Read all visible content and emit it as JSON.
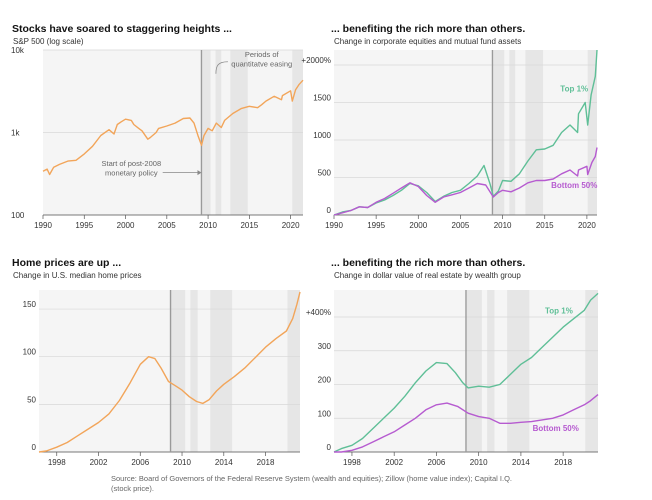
{
  "colors": {
    "orange": "#f2a55a",
    "green": "#5fbf97",
    "purple": "#b65bd0",
    "band": "#e6e6e6",
    "panel_bg": "#f5f5f5",
    "qe_line": "#9a9a9a"
  },
  "source": "Source: Board of Governors of the Federal Reserve System (wealth and equities); Zillow (home value index); Capital I.Q. (stock price).",
  "chart_data": [
    {
      "id": "sp500",
      "type": "line",
      "title": "Stocks have soared to staggering heights ...",
      "subtitle": "S&P 500 (log scale)",
      "log_scale": true,
      "xlim": [
        1990,
        2021.5
      ],
      "ylim": [
        100,
        10000
      ],
      "x_ticks": [
        1990,
        1995,
        2000,
        2005,
        2010,
        2015,
        2020
      ],
      "y_ticks": [
        100,
        1000,
        10000
      ],
      "y_tick_labels": [
        "100",
        "1k",
        "10k"
      ],
      "vline": 2009.2,
      "qe_bands": [
        [
          2009.3,
          2010.3
        ],
        [
          2010.9,
          2011.6
        ],
        [
          2012.7,
          2014.8
        ],
        [
          2020.2,
          2021.5
        ]
      ],
      "annotations": [
        {
          "text": "Periods of",
          "x": 2016.5,
          "y": 8200
        },
        {
          "text": "quantitatve easing",
          "x": 2016.5,
          "y": 6300
        },
        {
          "text": "Start of post-2008",
          "x": 2000.7,
          "y": 390
        },
        {
          "text": "monetary policy",
          "x": 2000.7,
          "y": 300
        }
      ],
      "series": [
        {
          "color_key": "orange",
          "points": [
            [
              1990,
              340
            ],
            [
              1990.5,
              360
            ],
            [
              1990.8,
              310
            ],
            [
              1991.3,
              380
            ],
            [
              1992,
              410
            ],
            [
              1993,
              450
            ],
            [
              1994,
              460
            ],
            [
              1995,
              550
            ],
            [
              1996,
              680
            ],
            [
              1997,
              920
            ],
            [
              1998,
              1080
            ],
            [
              1998.6,
              960
            ],
            [
              1999,
              1250
            ],
            [
              1999.5,
              1350
            ],
            [
              2000,
              1450
            ],
            [
              2000.7,
              1400
            ],
            [
              2001,
              1250
            ],
            [
              2001.7,
              1100
            ],
            [
              2002,
              1050
            ],
            [
              2002.7,
              830
            ],
            [
              2003,
              870
            ],
            [
              2003.7,
              1000
            ],
            [
              2004,
              1120
            ],
            [
              2005,
              1200
            ],
            [
              2006,
              1300
            ],
            [
              2007,
              1480
            ],
            [
              2007.8,
              1500
            ],
            [
              2008.3,
              1300
            ],
            [
              2008.8,
              900
            ],
            [
              2009.2,
              700
            ],
            [
              2009.5,
              920
            ],
            [
              2010,
              1120
            ],
            [
              2010.5,
              1050
            ],
            [
              2011,
              1300
            ],
            [
              2011.6,
              1150
            ],
            [
              2012,
              1400
            ],
            [
              2013,
              1700
            ],
            [
              2014,
              1950
            ],
            [
              2015,
              2080
            ],
            [
              2016,
              2000
            ],
            [
              2016.5,
              2170
            ],
            [
              2017,
              2400
            ],
            [
              2018,
              2750
            ],
            [
              2018.9,
              2500
            ],
            [
              2019,
              2800
            ],
            [
              2020,
              3200
            ],
            [
              2020.2,
              2400
            ],
            [
              2020.6,
              3300
            ],
            [
              2021,
              3800
            ],
            [
              2021.5,
              4300
            ]
          ]
        }
      ]
    },
    {
      "id": "equities",
      "type": "line",
      "title": "... benefiting the rich more than others.",
      "subtitle": "Change in corporate equities and mutual fund assets",
      "xlim": [
        1990,
        2021.2
      ],
      "ylim": [
        0,
        2200
      ],
      "x_ticks": [
        1990,
        1995,
        2000,
        2005,
        2010,
        2015,
        2020
      ],
      "y_ticks": [
        0,
        500,
        1000,
        1500,
        2000
      ],
      "y_tick_labels": [
        "0",
        "500",
        "1000",
        "1500",
        "+2000%"
      ],
      "vline": 2008.8,
      "qe_bands": [
        [
          2008.9,
          2010.2
        ],
        [
          2010.8,
          2011.5
        ],
        [
          2012.7,
          2014.8
        ],
        [
          2020.1,
          2021.2
        ]
      ],
      "series": [
        {
          "name": "Top 1%",
          "color_key": "green",
          "label_at": [
            2018.5,
            1650
          ],
          "points": [
            [
              1990,
              0
            ],
            [
              1991,
              40
            ],
            [
              1992,
              60
            ],
            [
              1993,
              110
            ],
            [
              1994,
              100
            ],
            [
              1995,
              160
            ],
            [
              1996,
              200
            ],
            [
              1997,
              260
            ],
            [
              1998,
              330
            ],
            [
              1999,
              420
            ],
            [
              2000,
              390
            ],
            [
              2001,
              300
            ],
            [
              2002,
              180
            ],
            [
              2003,
              250
            ],
            [
              2004,
              300
            ],
            [
              2005,
              330
            ],
            [
              2006,
              420
            ],
            [
              2007,
              520
            ],
            [
              2007.8,
              660
            ],
            [
              2008.5,
              420
            ],
            [
              2008.9,
              250
            ],
            [
              2009.5,
              320
            ],
            [
              2010,
              460
            ],
            [
              2011,
              450
            ],
            [
              2012,
              550
            ],
            [
              2013,
              720
            ],
            [
              2014,
              870
            ],
            [
              2015,
              880
            ],
            [
              2016,
              930
            ],
            [
              2017,
              1100
            ],
            [
              2018,
              1200
            ],
            [
              2018.9,
              1100
            ],
            [
              2019,
              1350
            ],
            [
              2019.8,
              1500
            ],
            [
              2020.1,
              1200
            ],
            [
              2020.5,
              1600
            ],
            [
              2021,
              1850
            ],
            [
              2021.2,
              2200
            ]
          ]
        },
        {
          "name": "Bottom 50%",
          "color_key": "purple",
          "label_at": [
            2018.5,
            360
          ],
          "points": [
            [
              1990,
              0
            ],
            [
              1991,
              30
            ],
            [
              1992,
              60
            ],
            [
              1993,
              110
            ],
            [
              1994,
              100
            ],
            [
              1995,
              170
            ],
            [
              1996,
              220
            ],
            [
              1997,
              290
            ],
            [
              1998,
              360
            ],
            [
              1999,
              430
            ],
            [
              2000,
              380
            ],
            [
              2001,
              260
            ],
            [
              2002,
              170
            ],
            [
              2003,
              240
            ],
            [
              2004,
              270
            ],
            [
              2005,
              300
            ],
            [
              2006,
              360
            ],
            [
              2007,
              420
            ],
            [
              2008,
              400
            ],
            [
              2008.9,
              240
            ],
            [
              2009.5,
              300
            ],
            [
              2010,
              330
            ],
            [
              2011,
              310
            ],
            [
              2012,
              360
            ],
            [
              2013,
              430
            ],
            [
              2014,
              460
            ],
            [
              2015,
              460
            ],
            [
              2016,
              480
            ],
            [
              2017,
              550
            ],
            [
              2018,
              600
            ],
            [
              2018.9,
              520
            ],
            [
              2019,
              600
            ],
            [
              2020,
              650
            ],
            [
              2020.1,
              540
            ],
            [
              2020.6,
              700
            ],
            [
              2021,
              780
            ],
            [
              2021.2,
              900
            ]
          ]
        }
      ]
    },
    {
      "id": "homeprices",
      "type": "line",
      "title": "Home prices are up ...",
      "subtitle": "Change in U.S. median home prices",
      "xlim": [
        1996.3,
        2021.3
      ],
      "ylim": [
        0,
        170
      ],
      "x_ticks": [
        1998,
        2002,
        2006,
        2010,
        2014,
        2018
      ],
      "y_ticks": [
        0,
        50,
        100,
        150
      ],
      "y_tick_labels": [
        "0",
        "50",
        "100",
        "150"
      ],
      "vline": 2008.9,
      "qe_bands": [
        [
          2008.9,
          2010.3
        ],
        [
          2010.8,
          2011.5
        ],
        [
          2012.7,
          2014.8
        ],
        [
          2020.1,
          2021.3
        ]
      ],
      "series": [
        {
          "color_key": "orange",
          "points": [
            [
              1996.3,
              0
            ],
            [
              1997,
              1
            ],
            [
              1998,
              5
            ],
            [
              1999,
              10
            ],
            [
              2000,
              17
            ],
            [
              2001,
              24
            ],
            [
              2002,
              31
            ],
            [
              2003,
              40
            ],
            [
              2004,
              54
            ],
            [
              2005,
              72
            ],
            [
              2006,
              92
            ],
            [
              2006.8,
              100
            ],
            [
              2007.4,
              98
            ],
            [
              2008,
              88
            ],
            [
              2008.7,
              74
            ],
            [
              2009.3,
              70
            ],
            [
              2010,
              65
            ],
            [
              2010.7,
              58
            ],
            [
              2011.4,
              53
            ],
            [
              2012,
              51
            ],
            [
              2012.6,
              55
            ],
            [
              2013.3,
              64
            ],
            [
              2014,
              71
            ],
            [
              2015,
              79
            ],
            [
              2016,
              88
            ],
            [
              2017,
              99
            ],
            [
              2018,
              110
            ],
            [
              2019,
              119
            ],
            [
              2020,
              127
            ],
            [
              2020.6,
              140
            ],
            [
              2021,
              155
            ],
            [
              2021.3,
              168
            ]
          ]
        }
      ]
    },
    {
      "id": "realestate",
      "type": "line",
      "title": "... benefiting the rich more than others.",
      "subtitle": "Change in dollar value of real estate by wealth group",
      "xlim": [
        1996.3,
        2021.3
      ],
      "ylim": [
        0,
        480
      ],
      "x_ticks": [
        1998,
        2002,
        2006,
        2010,
        2014,
        2018
      ],
      "y_ticks": [
        0,
        100,
        200,
        300,
        400
      ],
      "y_tick_labels": [
        "0",
        "100",
        "200",
        "300",
        "+400%"
      ],
      "vline": 2008.8,
      "qe_bands": [
        [
          2008.9,
          2010.3
        ],
        [
          2010.8,
          2011.5
        ],
        [
          2012.7,
          2014.8
        ],
        [
          2020.1,
          2021.3
        ]
      ],
      "series": [
        {
          "name": "Top 1%",
          "color_key": "green",
          "label_at": [
            2017.6,
            410
          ],
          "points": [
            [
              1996.3,
              0
            ],
            [
              1997,
              10
            ],
            [
              1998,
              20
            ],
            [
              1999,
              40
            ],
            [
              2000,
              70
            ],
            [
              2001,
              100
            ],
            [
              2002,
              130
            ],
            [
              2003,
              165
            ],
            [
              2004,
              205
            ],
            [
              2005,
              240
            ],
            [
              2006,
              265
            ],
            [
              2007,
              262
            ],
            [
              2007.8,
              235
            ],
            [
              2008.5,
              205
            ],
            [
              2009,
              190
            ],
            [
              2010,
              195
            ],
            [
              2011,
              192
            ],
            [
              2012,
              200
            ],
            [
              2013,
              230
            ],
            [
              2014,
              260
            ],
            [
              2015,
              280
            ],
            [
              2016,
              310
            ],
            [
              2017,
              340
            ],
            [
              2018,
              370
            ],
            [
              2019,
              395
            ],
            [
              2020,
              420
            ],
            [
              2020.6,
              450
            ],
            [
              2021.3,
              470
            ]
          ]
        },
        {
          "name": "Bottom 50%",
          "color_key": "purple",
          "label_at": [
            2017.3,
            62
          ],
          "points": [
            [
              1996.3,
              0
            ],
            [
              1997,
              0
            ],
            [
              1998,
              5
            ],
            [
              1999,
              15
            ],
            [
              2000,
              30
            ],
            [
              2001,
              45
            ],
            [
              2002,
              60
            ],
            [
              2003,
              80
            ],
            [
              2004,
              100
            ],
            [
              2005,
              125
            ],
            [
              2006,
              140
            ],
            [
              2007,
              145
            ],
            [
              2008,
              135
            ],
            [
              2009,
              115
            ],
            [
              2010,
              105
            ],
            [
              2011,
              100
            ],
            [
              2012,
              85
            ],
            [
              2013,
              85
            ],
            [
              2014,
              88
            ],
            [
              2015,
              90
            ],
            [
              2016,
              95
            ],
            [
              2017,
              100
            ],
            [
              2018,
              110
            ],
            [
              2019,
              125
            ],
            [
              2020,
              140
            ],
            [
              2020.5,
              150
            ],
            [
              2021.3,
              170
            ]
          ]
        }
      ]
    }
  ]
}
